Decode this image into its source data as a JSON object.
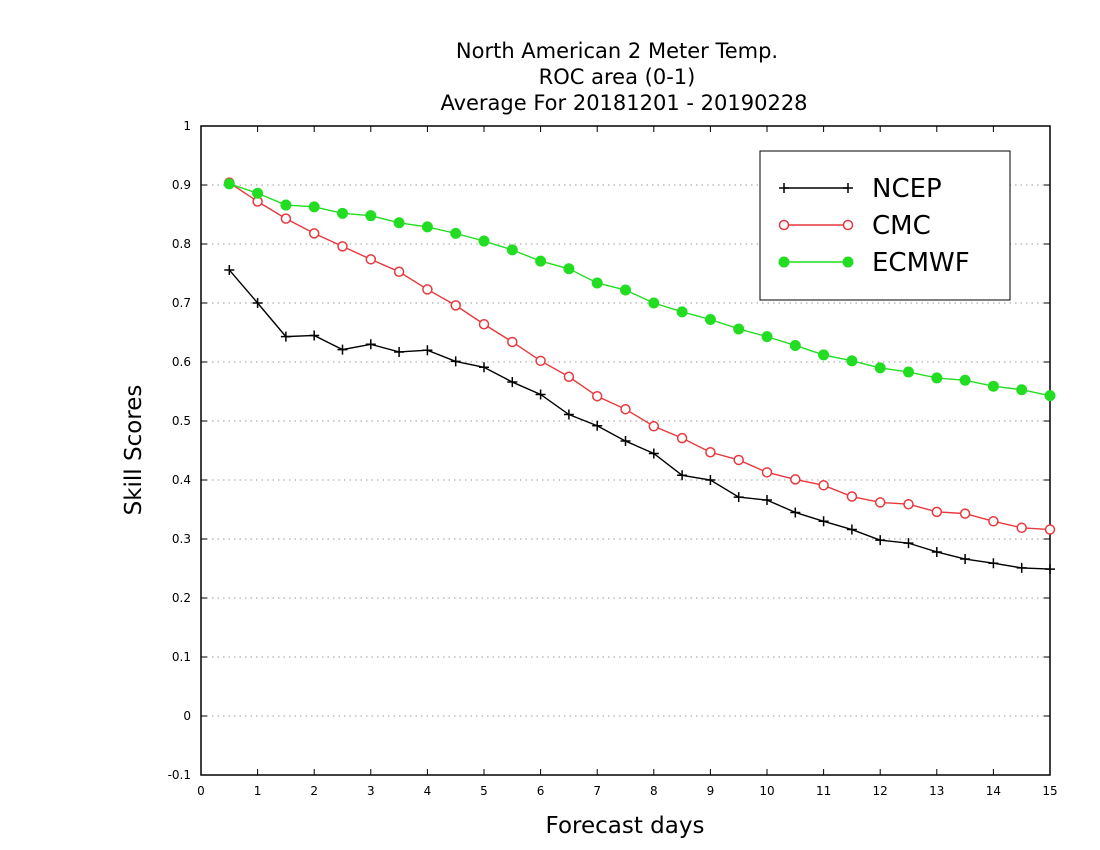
{
  "chart_data": {
    "type": "line",
    "title_lines": [
      "North American 2 Meter Temp.",
      "ROC area (0-1)",
      "Average For 20181201 - 20190228"
    ],
    "xlabel": "Forecast days",
    "ylabel": "Skill Scores",
    "xlim": [
      0,
      15
    ],
    "ylim": [
      -0.1,
      1
    ],
    "xticks": [
      0,
      1,
      2,
      3,
      4,
      5,
      6,
      7,
      8,
      9,
      10,
      11,
      12,
      13,
      14,
      15
    ],
    "yticks": [
      -0.1,
      0,
      0.1,
      0.2,
      0.3,
      0.4,
      0.5,
      0.6,
      0.7,
      0.8,
      0.9,
      1
    ],
    "ytick_labels": [
      "-0.1",
      "0",
      "0.1",
      "0.2",
      "0.3",
      "0.4",
      "0.5",
      "0.6",
      "0.7",
      "0.8",
      "0.9",
      "1"
    ],
    "grid": "horizontal dotted",
    "legend_position": "top-right",
    "x": [
      0.5,
      1,
      1.5,
      2,
      2.5,
      3,
      3.5,
      4,
      4.5,
      5,
      5.5,
      6,
      6.5,
      7,
      7.5,
      8,
      8.5,
      9,
      9.5,
      10,
      10.5,
      11,
      11.5,
      12,
      12.5,
      13,
      13.5,
      14,
      14.5,
      15
    ],
    "series": [
      {
        "name": "NCEP",
        "color": "#000000",
        "marker": "plus",
        "values": [
          0.756,
          0.7,
          0.643,
          0.645,
          0.621,
          0.63,
          0.617,
          0.62,
          0.601,
          0.591,
          0.566,
          0.545,
          0.511,
          0.492,
          0.466,
          0.445,
          0.408,
          0.4,
          0.371,
          0.366,
          0.345,
          0.33,
          0.316,
          0.298,
          0.293,
          0.278,
          0.266,
          0.259,
          0.251,
          0.249
        ]
      },
      {
        "name": "CMC",
        "color": "#e8383d",
        "marker": "open-circle",
        "values": [
          0.904,
          0.872,
          0.843,
          0.818,
          0.796,
          0.774,
          0.753,
          0.723,
          0.696,
          0.664,
          0.634,
          0.602,
          0.575,
          0.542,
          0.52,
          0.491,
          0.471,
          0.447,
          0.434,
          0.413,
          0.401,
          0.391,
          0.372,
          0.362,
          0.359,
          0.346,
          0.343,
          0.33,
          0.319,
          0.316
        ]
      },
      {
        "name": "ECMWF",
        "color": "#22dd22",
        "marker": "filled-circle",
        "values": [
          0.902,
          0.886,
          0.866,
          0.863,
          0.852,
          0.848,
          0.836,
          0.829,
          0.818,
          0.805,
          0.79,
          0.771,
          0.758,
          0.734,
          0.722,
          0.7,
          0.685,
          0.672,
          0.656,
          0.643,
          0.628,
          0.612,
          0.602,
          0.59,
          0.583,
          0.573,
          0.569,
          0.559,
          0.553,
          0.543
        ]
      }
    ]
  }
}
